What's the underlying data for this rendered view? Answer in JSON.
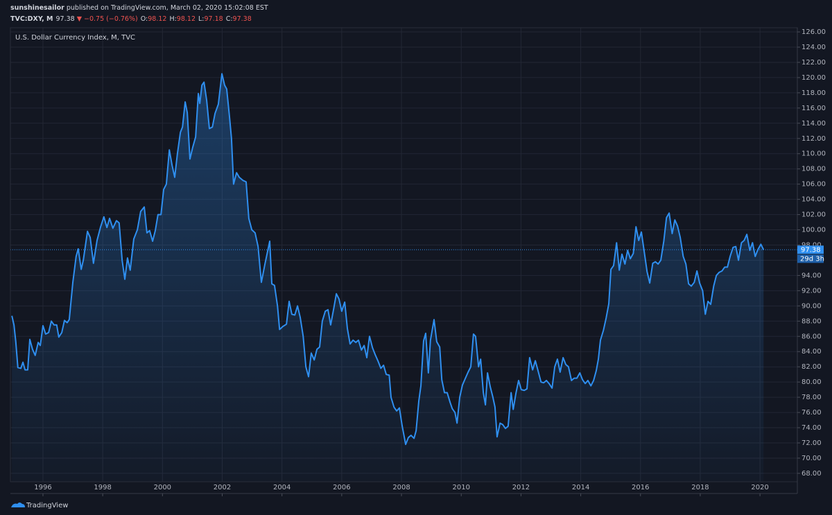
{
  "header": {
    "author": "sunshinesailor",
    "published": " published on TradingView.com, March 02, 2020 15:02:08 EST",
    "symbol": "TVC:DXY, M",
    "price": "97.38",
    "change": "▼ −0.75 (−0.76%)",
    "ohlc": [
      {
        "label": "O:",
        "value": "98.12"
      },
      {
        "label": "H:",
        "value": "98.12"
      },
      {
        "label": "L:",
        "value": "97.18"
      },
      {
        "label": "C:",
        "value": "97.38"
      }
    ]
  },
  "logo": "TradingView",
  "chart_data": {
    "type": "line",
    "title": "U.S. Dollar Currency Index, M, TVC",
    "color": "#2f8ff0",
    "grid": true,
    "last_value": 97.38,
    "countdown": "29d 3h",
    "xlim": [
      1994.91,
      2021.25
    ],
    "xticks": [
      1996,
      1998,
      2000,
      2002,
      2004,
      2006,
      2008,
      2010,
      2012,
      2014,
      2016,
      2018,
      2020
    ],
    "ylim": [
      66.9,
      126.55
    ],
    "yticks": [
      {
        "value": 68,
        "label": "68.00"
      },
      {
        "value": 70,
        "label": "70.00"
      },
      {
        "value": 72,
        "label": "72.00"
      },
      {
        "value": 74,
        "label": "74.00"
      },
      {
        "value": 76,
        "label": "76.00"
      },
      {
        "value": 78,
        "label": "78.00"
      },
      {
        "value": 80,
        "label": "80.00"
      },
      {
        "value": 82,
        "label": "82.00"
      },
      {
        "value": 84,
        "label": "84.00"
      },
      {
        "value": 86,
        "label": "86.00"
      },
      {
        "value": 88,
        "label": "88.00"
      },
      {
        "value": 90,
        "label": "90.00"
      },
      {
        "value": 92,
        "label": "92.00"
      },
      {
        "value": 94,
        "label": "94.00"
      },
      {
        "value": 96,
        "label": "96.00"
      },
      {
        "value": 98,
        "label": "98.00"
      },
      {
        "value": 100,
        "label": "100.00"
      },
      {
        "value": 102,
        "label": "102.00"
      },
      {
        "value": 104,
        "label": "104.00"
      },
      {
        "value": 106,
        "label": "106.00"
      },
      {
        "value": 108,
        "label": "108.00"
      },
      {
        "value": 110,
        "label": "110.00"
      },
      {
        "value": 112,
        "label": "112.00"
      },
      {
        "value": 114,
        "label": "114.00"
      },
      {
        "value": 116,
        "label": "116.00"
      },
      {
        "value": 118,
        "label": "118.00"
      },
      {
        "value": 120,
        "label": "120.00"
      },
      {
        "value": 122,
        "label": "122.00"
      },
      {
        "value": 124,
        "label": "124.00"
      },
      {
        "value": 126,
        "label": "126.00"
      }
    ],
    "x": [
      1994.96,
      1995.03,
      1995.09,
      1995.16,
      1995.26,
      1995.33,
      1995.4,
      1995.49,
      1995.56,
      1995.65,
      1995.74,
      1995.84,
      1995.91,
      1996.0,
      1996.09,
      1996.19,
      1996.28,
      1996.37,
      1996.46,
      1996.53,
      1996.63,
      1996.72,
      1996.81,
      1996.88,
      1997.0,
      1997.11,
      1997.18,
      1997.28,
      1997.35,
      1997.49,
      1997.58,
      1997.69,
      1997.81,
      1997.93,
      1998.04,
      1998.14,
      1998.23,
      1998.34,
      1998.46,
      1998.55,
      1998.65,
      1998.74,
      1998.83,
      1998.92,
      1999.04,
      1999.16,
      1999.27,
      1999.39,
      1999.48,
      1999.57,
      1999.67,
      1999.76,
      1999.85,
      1999.95,
      2000.04,
      2000.13,
      2000.23,
      2000.32,
      2000.41,
      2000.5,
      2000.6,
      2000.67,
      2000.76,
      2000.83,
      2000.92,
      2001.01,
      2001.11,
      2001.2,
      2001.25,
      2001.32,
      2001.39,
      2001.48,
      2001.57,
      2001.67,
      2001.76,
      2001.87,
      2001.99,
      2002.08,
      2002.15,
      2002.24,
      2002.31,
      2002.38,
      2002.48,
      2002.57,
      2002.69,
      2002.8,
      2002.89,
      2002.99,
      2003.1,
      2003.2,
      2003.31,
      2003.43,
      2003.59,
      2003.66,
      2003.75,
      2003.85,
      2003.92,
      2004.03,
      2004.15,
      2004.24,
      2004.33,
      2004.43,
      2004.52,
      2004.61,
      2004.71,
      2004.8,
      2004.89,
      2004.98,
      2005.08,
      2005.17,
      2005.26,
      2005.35,
      2005.45,
      2005.54,
      2005.63,
      2005.73,
      2005.82,
      2005.91,
      2006.0,
      2006.1,
      2006.19,
      2006.28,
      2006.38,
      2006.47,
      2006.56,
      2006.66,
      2006.75,
      2006.84,
      2006.93,
      2007.03,
      2007.12,
      2007.21,
      2007.31,
      2007.4,
      2007.49,
      2007.59,
      2007.65,
      2007.75,
      2007.84,
      2007.93,
      2008.02,
      2008.14,
      2008.23,
      2008.32,
      2008.42,
      2008.49,
      2008.58,
      2008.65,
      2008.74,
      2008.81,
      2008.9,
      2008.97,
      2009.09,
      2009.18,
      2009.28,
      2009.35,
      2009.44,
      2009.53,
      2009.63,
      2009.7,
      2009.79,
      2009.86,
      2009.95,
      2010.04,
      2010.14,
      2010.23,
      2010.32,
      2010.41,
      2010.48,
      2010.58,
      2010.65,
      2010.74,
      2010.81,
      2010.88,
      2010.97,
      2011.06,
      2011.13,
      2011.2,
      2011.3,
      2011.39,
      2011.48,
      2011.57,
      2011.67,
      2011.74,
      2011.83,
      2011.92,
      2012.01,
      2012.11,
      2012.2,
      2012.29,
      2012.39,
      2012.48,
      2012.57,
      2012.67,
      2012.76,
      2012.85,
      2012.94,
      2013.04,
      2013.13,
      2013.22,
      2013.31,
      2013.41,
      2013.5,
      2013.59,
      2013.69,
      2013.78,
      2013.87,
      2013.97,
      2014.06,
      2014.15,
      2014.24,
      2014.34,
      2014.43,
      2014.52,
      2014.59,
      2014.66,
      2014.76,
      2014.85,
      2014.94,
      2015.01,
      2015.1,
      2015.2,
      2015.29,
      2015.38,
      2015.48,
      2015.57,
      2015.66,
      2015.76,
      2015.85,
      2015.94,
      2016.03,
      2016.13,
      2016.22,
      2016.31,
      2016.41,
      2016.5,
      2016.59,
      2016.68,
      2016.78,
      2016.87,
      2016.96,
      2017.06,
      2017.15,
      2017.24,
      2017.33,
      2017.43,
      2017.52,
      2017.61,
      2017.7,
      2017.8,
      2017.89,
      2017.98,
      2018.08,
      2018.17,
      2018.26,
      2018.35,
      2018.45,
      2018.54,
      2018.63,
      2018.73,
      2018.82,
      2018.91,
      2019.0,
      2019.1,
      2019.19,
      2019.28,
      2019.38,
      2019.47,
      2019.56,
      2019.66,
      2019.75,
      2019.84,
      2019.93,
      2020.03,
      2020.12
    ],
    "values": [
      88.7,
      87.5,
      85.3,
      81.9,
      81.8,
      82.6,
      81.6,
      81.6,
      85.6,
      84.3,
      83.5,
      85.2,
      84.8,
      87.4,
      86.3,
      86.5,
      88.0,
      87.5,
      87.5,
      85.9,
      86.5,
      88.1,
      87.8,
      88.2,
      93.1,
      96.5,
      97.5,
      94.8,
      96.0,
      99.8,
      99.0,
      95.6,
      98.6,
      100.4,
      101.7,
      100.3,
      101.5,
      100.2,
      101.2,
      100.9,
      96.0,
      93.5,
      96.3,
      94.7,
      98.8,
      100.0,
      102.4,
      103.0,
      99.6,
      99.9,
      98.5,
      99.9,
      102.0,
      102.0,
      105.3,
      106.0,
      110.5,
      108.5,
      106.9,
      110.0,
      112.8,
      113.5,
      116.8,
      115.4,
      109.3,
      110.8,
      112.2,
      117.9,
      116.6,
      119.0,
      119.4,
      117.0,
      113.3,
      113.5,
      115.3,
      116.5,
      120.5,
      119.0,
      118.5,
      115.0,
      112.0,
      106.0,
      107.5,
      106.9,
      106.5,
      106.3,
      101.5,
      100.0,
      99.6,
      97.8,
      93.1,
      95.5,
      98.5,
      92.9,
      92.7,
      90.0,
      86.9,
      87.3,
      87.6,
      90.6,
      88.9,
      88.8,
      90.0,
      88.5,
      86.0,
      82.0,
      80.7,
      83.8,
      82.9,
      84.3,
      84.6,
      88.0,
      89.3,
      89.5,
      87.5,
      89.6,
      91.6,
      90.9,
      89.3,
      90.5,
      87.0,
      85.0,
      85.5,
      85.2,
      85.5,
      84.2,
      84.8,
      83.2,
      86.0,
      84.5,
      83.6,
      82.8,
      81.8,
      82.2,
      81.0,
      80.9,
      78.0,
      76.7,
      76.2,
      76.6,
      74.3,
      71.8,
      72.7,
      73.0,
      72.6,
      73.6,
      77.5,
      79.5,
      85.4,
      86.4,
      81.2,
      85.5,
      88.2,
      85.3,
      84.6,
      80.3,
      78.6,
      78.6,
      77.3,
      76.5,
      76.0,
      74.6,
      78.0,
      79.6,
      80.5,
      81.3,
      82.0,
      86.3,
      86.0,
      82.0,
      83.0,
      78.6,
      77.0,
      81.2,
      79.4,
      78.0,
      76.7,
      72.8,
      74.6,
      74.4,
      73.9,
      74.2,
      78.6,
      76.4,
      78.5,
      80.2,
      79.0,
      78.9,
      79.1,
      83.2,
      81.6,
      82.8,
      81.5,
      80.0,
      79.9,
      80.2,
      79.8,
      79.2,
      82.0,
      83.0,
      81.3,
      83.2,
      82.3,
      82.0,
      80.2,
      80.5,
      80.5,
      81.2,
      80.3,
      79.8,
      80.2,
      79.5,
      80.2,
      81.5,
      83.0,
      85.5,
      86.8,
      88.4,
      90.3,
      94.8,
      95.3,
      98.3,
      94.7,
      96.8,
      95.5,
      97.3,
      96.2,
      96.9,
      100.4,
      98.6,
      99.7,
      97.0,
      94.5,
      93.0,
      95.6,
      95.8,
      95.5,
      96.0,
      98.5,
      101.6,
      102.2,
      99.5,
      101.3,
      100.5,
      99.0,
      96.5,
      95.5,
      92.9,
      92.6,
      93.1,
      94.6,
      93.0,
      92.0,
      88.9,
      90.6,
      90.2,
      92.6,
      94.0,
      94.4,
      94.6,
      95.1,
      95.1,
      96.5,
      97.7,
      97.8,
      96.0,
      98.3,
      98.6,
      99.4,
      97.3,
      98.3,
      96.5,
      97.4,
      98.1,
      97.38
    ]
  }
}
